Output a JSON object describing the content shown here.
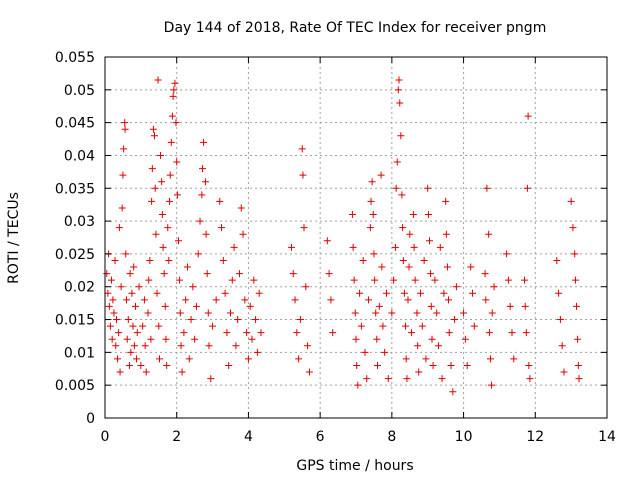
{
  "chart_data": {
    "type": "scatter",
    "title": "Day 144 of 2018, Rate Of TEC Index for receiver pngm",
    "xlabel": "GPS time / hours",
    "ylabel": "ROTI / TECUs",
    "xlim": [
      0,
      14
    ],
    "ylim": [
      0,
      0.055
    ],
    "xticks": [
      0,
      2,
      4,
      6,
      8,
      10,
      12,
      14
    ],
    "xtick_labels": [
      "0",
      "2",
      "4",
      "6",
      "8",
      "10",
      "12",
      "14"
    ],
    "yticks": [
      0,
      0.005,
      0.01,
      0.015,
      0.02,
      0.025,
      0.03,
      0.035,
      0.04,
      0.045,
      0.05,
      0.055
    ],
    "ytick_labels": [
      "0",
      "0.005",
      "0.01",
      "0.015",
      "0.02",
      "0.025",
      "0.03",
      "0.035",
      "0.04",
      "0.045",
      "0.05",
      "0.055"
    ],
    "grid": true,
    "marker": "+",
    "color": "#e00000",
    "series": [
      {
        "name": "ROTI",
        "points": [
          [
            0.05,
            0.022
          ],
          [
            0.08,
            0.019
          ],
          [
            0.1,
            0.025
          ],
          [
            0.12,
            0.017
          ],
          [
            0.15,
            0.014
          ],
          [
            0.18,
            0.021
          ],
          [
            0.2,
            0.012
          ],
          [
            0.22,
            0.018
          ],
          [
            0.25,
            0.016
          ],
          [
            0.28,
            0.024
          ],
          [
            0.3,
            0.011
          ],
          [
            0.32,
            0.015
          ],
          [
            0.35,
            0.009
          ],
          [
            0.38,
            0.013
          ],
          [
            0.4,
            0.029
          ],
          [
            0.42,
            0.007
          ],
          [
            0.45,
            0.02
          ],
          [
            0.48,
            0.032
          ],
          [
            0.5,
            0.037
          ],
          [
            0.52,
            0.041
          ],
          [
            0.55,
            0.045
          ],
          [
            0.56,
            0.044
          ],
          [
            0.58,
            0.025
          ],
          [
            0.6,
            0.018
          ],
          [
            0.62,
            0.012
          ],
          [
            0.65,
            0.015
          ],
          [
            0.68,
            0.008
          ],
          [
            0.7,
            0.022
          ],
          [
            0.72,
            0.01
          ],
          [
            0.75,
            0.019
          ],
          [
            0.78,
            0.014
          ],
          [
            0.8,
            0.023
          ],
          [
            0.82,
            0.011
          ],
          [
            0.85,
            0.017
          ],
          [
            0.88,
            0.009
          ],
          [
            0.9,
            0.013
          ],
          [
            0.95,
            0.02
          ],
          [
            1.0,
            0.008
          ],
          [
            1.05,
            0.014
          ],
          [
            1.1,
            0.018
          ],
          [
            1.12,
            0.011
          ],
          [
            1.15,
            0.007
          ],
          [
            1.2,
            0.016
          ],
          [
            1.22,
            0.021
          ],
          [
            1.25,
            0.024
          ],
          [
            1.28,
            0.012
          ],
          [
            1.3,
            0.033
          ],
          [
            1.32,
            0.038
          ],
          [
            1.35,
            0.044
          ],
          [
            1.38,
            0.043
          ],
          [
            1.4,
            0.035
          ],
          [
            1.42,
            0.028
          ],
          [
            1.45,
            0.019
          ],
          [
            1.48,
            0.0515
          ],
          [
            1.5,
            0.014
          ],
          [
            1.52,
            0.009
          ],
          [
            1.55,
            0.04
          ],
          [
            1.58,
            0.036
          ],
          [
            1.6,
            0.031
          ],
          [
            1.62,
            0.026
          ],
          [
            1.65,
            0.022
          ],
          [
            1.68,
            0.017
          ],
          [
            1.7,
            0.012
          ],
          [
            1.72,
            0.008
          ],
          [
            1.75,
            0.029
          ],
          [
            1.78,
            0.024
          ],
          [
            1.8,
            0.033
          ],
          [
            1.82,
            0.037
          ],
          [
            1.85,
            0.042
          ],
          [
            1.88,
            0.046
          ],
          [
            1.9,
            0.049
          ],
          [
            1.92,
            0.05
          ],
          [
            1.95,
            0.051
          ],
          [
            1.98,
            0.045
          ],
          [
            2.0,
            0.039
          ],
          [
            2.02,
            0.034
          ],
          [
            2.05,
            0.027
          ],
          [
            2.08,
            0.021
          ],
          [
            2.1,
            0.016
          ],
          [
            2.12,
            0.011
          ],
          [
            2.15,
            0.007
          ],
          [
            2.2,
            0.013
          ],
          [
            2.25,
            0.018
          ],
          [
            2.3,
            0.023
          ],
          [
            2.35,
            0.009
          ],
          [
            2.4,
            0.015
          ],
          [
            2.45,
            0.02
          ],
          [
            2.5,
            0.012
          ],
          [
            2.55,
            0.017
          ],
          [
            2.6,
            0.025
          ],
          [
            2.65,
            0.03
          ],
          [
            2.7,
            0.034
          ],
          [
            2.72,
            0.038
          ],
          [
            2.75,
            0.042
          ],
          [
            2.8,
            0.036
          ],
          [
            2.82,
            0.028
          ],
          [
            2.85,
            0.022
          ],
          [
            2.88,
            0.016
          ],
          [
            2.9,
            0.011
          ],
          [
            2.95,
            0.006
          ],
          [
            3.0,
            0.014
          ],
          [
            3.1,
            0.018
          ],
          [
            3.2,
            0.033
          ],
          [
            3.25,
            0.029
          ],
          [
            3.3,
            0.024
          ],
          [
            3.35,
            0.019
          ],
          [
            3.4,
            0.013
          ],
          [
            3.45,
            0.008
          ],
          [
            3.5,
            0.016
          ],
          [
            3.55,
            0.021
          ],
          [
            3.6,
            0.026
          ],
          [
            3.65,
            0.011
          ],
          [
            3.7,
            0.015
          ],
          [
            3.75,
            0.022
          ],
          [
            3.8,
            0.032
          ],
          [
            3.85,
            0.028
          ],
          [
            3.9,
            0.018
          ],
          [
            3.95,
            0.013
          ],
          [
            4.0,
            0.009
          ],
          [
            4.05,
            0.017
          ],
          [
            4.1,
            0.012
          ],
          [
            4.15,
            0.021
          ],
          [
            4.2,
            0.015
          ],
          [
            4.25,
            0.01
          ],
          [
            4.3,
            0.019
          ],
          [
            4.35,
            0.013
          ],
          [
            5.2,
            0.026
          ],
          [
            5.25,
            0.022
          ],
          [
            5.3,
            0.018
          ],
          [
            5.35,
            0.013
          ],
          [
            5.4,
            0.009
          ],
          [
            5.45,
            0.015
          ],
          [
            5.5,
            0.041
          ],
          [
            5.52,
            0.037
          ],
          [
            5.55,
            0.029
          ],
          [
            5.6,
            0.02
          ],
          [
            5.65,
            0.011
          ],
          [
            5.7,
            0.007
          ],
          [
            6.2,
            0.027
          ],
          [
            6.25,
            0.022
          ],
          [
            6.3,
            0.018
          ],
          [
            6.35,
            0.013
          ],
          [
            6.9,
            0.031
          ],
          [
            6.92,
            0.026
          ],
          [
            6.95,
            0.021
          ],
          [
            6.98,
            0.016
          ],
          [
            7.0,
            0.012
          ],
          [
            7.02,
            0.008
          ],
          [
            7.05,
            0.005
          ],
          [
            7.1,
            0.019
          ],
          [
            7.15,
            0.014
          ],
          [
            7.2,
            0.024
          ],
          [
            7.25,
            0.01
          ],
          [
            7.3,
            0.006
          ],
          [
            7.35,
            0.018
          ],
          [
            7.4,
            0.029
          ],
          [
            7.42,
            0.033
          ],
          [
            7.45,
            0.036
          ],
          [
            7.48,
            0.031
          ],
          [
            7.5,
            0.025
          ],
          [
            7.52,
            0.021
          ],
          [
            7.55,
            0.016
          ],
          [
            7.58,
            0.012
          ],
          [
            7.6,
            0.008
          ],
          [
            7.65,
            0.017
          ],
          [
            7.7,
            0.037
          ],
          [
            7.72,
            0.023
          ],
          [
            7.75,
            0.014
          ],
          [
            7.8,
            0.01
          ],
          [
            7.85,
            0.019
          ],
          [
            7.9,
            0.006
          ],
          [
            8.0,
            0.016
          ],
          [
            8.05,
            0.021
          ],
          [
            8.1,
            0.026
          ],
          [
            8.12,
            0.035
          ],
          [
            8.15,
            0.039
          ],
          [
            8.18,
            0.05
          ],
          [
            8.2,
            0.0515
          ],
          [
            8.22,
            0.048
          ],
          [
            8.25,
            0.043
          ],
          [
            8.28,
            0.034
          ],
          [
            8.3,
            0.029
          ],
          [
            8.32,
            0.024
          ],
          [
            8.35,
            0.019
          ],
          [
            8.38,
            0.014
          ],
          [
            8.4,
            0.009
          ],
          [
            8.42,
            0.006
          ],
          [
            8.45,
            0.018
          ],
          [
            8.48,
            0.023
          ],
          [
            8.5,
            0.028
          ],
          [
            8.55,
            0.013
          ],
          [
            8.6,
            0.031
          ],
          [
            8.62,
            0.026
          ],
          [
            8.65,
            0.021
          ],
          [
            8.7,
            0.016
          ],
          [
            8.72,
            0.011
          ],
          [
            8.75,
            0.007
          ],
          [
            8.8,
            0.019
          ],
          [
            8.85,
            0.014
          ],
          [
            8.9,
            0.024
          ],
          [
            8.95,
            0.009
          ],
          [
            9.0,
            0.035
          ],
          [
            9.02,
            0.031
          ],
          [
            9.05,
            0.027
          ],
          [
            9.08,
            0.022
          ],
          [
            9.1,
            0.017
          ],
          [
            9.12,
            0.012
          ],
          [
            9.15,
            0.008
          ],
          [
            9.2,
            0.021
          ],
          [
            9.25,
            0.016
          ],
          [
            9.3,
            0.011
          ],
          [
            9.35,
            0.026
          ],
          [
            9.4,
            0.006
          ],
          [
            9.45,
            0.019
          ],
          [
            9.5,
            0.033
          ],
          [
            9.52,
            0.028
          ],
          [
            9.55,
            0.023
          ],
          [
            9.58,
            0.018
          ],
          [
            9.6,
            0.013
          ],
          [
            9.65,
            0.008
          ],
          [
            9.7,
            0.004
          ],
          [
            9.75,
            0.015
          ],
          [
            9.8,
            0.02
          ],
          [
            10.0,
            0.016
          ],
          [
            10.05,
            0.012
          ],
          [
            10.1,
            0.008
          ],
          [
            10.2,
            0.023
          ],
          [
            10.25,
            0.019
          ],
          [
            10.3,
            0.014
          ],
          [
            10.6,
            0.022
          ],
          [
            10.62,
            0.018
          ],
          [
            10.65,
            0.035
          ],
          [
            10.7,
            0.028
          ],
          [
            10.72,
            0.013
          ],
          [
            10.75,
            0.009
          ],
          [
            10.78,
            0.005
          ],
          [
            10.8,
            0.016
          ],
          [
            10.85,
            0.02
          ],
          [
            11.2,
            0.025
          ],
          [
            11.25,
            0.021
          ],
          [
            11.3,
            0.017
          ],
          [
            11.35,
            0.013
          ],
          [
            11.4,
            0.009
          ],
          [
            11.7,
            0.021
          ],
          [
            11.72,
            0.017
          ],
          [
            11.75,
            0.013
          ],
          [
            11.78,
            0.035
          ],
          [
            11.8,
            0.046
          ],
          [
            11.82,
            0.008
          ],
          [
            11.85,
            0.006
          ],
          [
            12.6,
            0.024
          ],
          [
            12.65,
            0.019
          ],
          [
            12.7,
            0.015
          ],
          [
            12.75,
            0.011
          ],
          [
            12.8,
            0.007
          ],
          [
            13.0,
            0.033
          ],
          [
            13.05,
            0.029
          ],
          [
            13.1,
            0.025
          ],
          [
            13.12,
            0.021
          ],
          [
            13.15,
            0.017
          ],
          [
            13.18,
            0.012
          ],
          [
            13.2,
            0.008
          ],
          [
            13.22,
            0.006
          ]
        ]
      }
    ]
  }
}
